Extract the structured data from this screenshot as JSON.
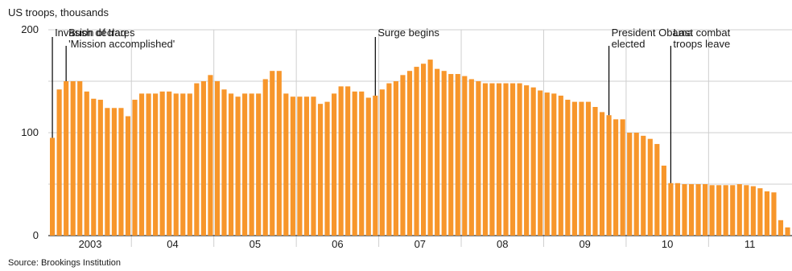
{
  "chart_data": {
    "type": "bar",
    "title": "US troops, thousands",
    "source": "Source: Brookings Institution",
    "ylim": [
      0,
      200
    ],
    "yticks": [
      0,
      100,
      200
    ],
    "grid": true,
    "bar_color": "#F7962B",
    "year_labels": [
      "2003",
      "04",
      "05",
      "06",
      "07",
      "08",
      "09",
      "10",
      "11"
    ],
    "values": [
      95,
      142,
      150,
      150,
      150,
      140,
      133,
      132,
      124,
      124,
      124,
      116,
      132,
      138,
      138,
      138,
      140,
      140,
      138,
      138,
      138,
      148,
      150,
      156,
      150,
      142,
      138,
      135,
      138,
      138,
      138,
      152,
      160,
      160,
      138,
      135,
      135,
      135,
      135,
      128,
      130,
      138,
      145,
      145,
      140,
      140,
      134,
      136,
      142,
      148,
      150,
      156,
      160,
      164,
      167,
      171,
      162,
      160,
      157,
      157,
      155,
      152,
      150,
      148,
      148,
      148,
      148,
      148,
      148,
      146,
      144,
      141,
      139,
      138,
      136,
      132,
      130,
      130,
      130,
      125,
      120,
      117,
      113,
      113,
      100,
      100,
      97,
      94,
      89,
      68,
      51,
      51,
      50,
      50,
      50,
      50,
      49,
      49,
      49,
      49,
      50,
      49,
      48,
      46,
      43,
      42,
      15,
      8
    ],
    "annotations": [
      {
        "lines": [
          "Invasion of Iraq"
        ],
        "bar_index": 0
      },
      {
        "lines": [
          "Bush declares",
          "'Mission accomplished'"
        ],
        "bar_index": 2
      },
      {
        "lines": [
          "Surge begins"
        ],
        "bar_index": 47
      },
      {
        "lines": [
          "President Obama",
          "elected"
        ],
        "bar_index": 81
      },
      {
        "lines": [
          "Last combat",
          "troops leave"
        ],
        "bar_index": 90
      }
    ]
  }
}
